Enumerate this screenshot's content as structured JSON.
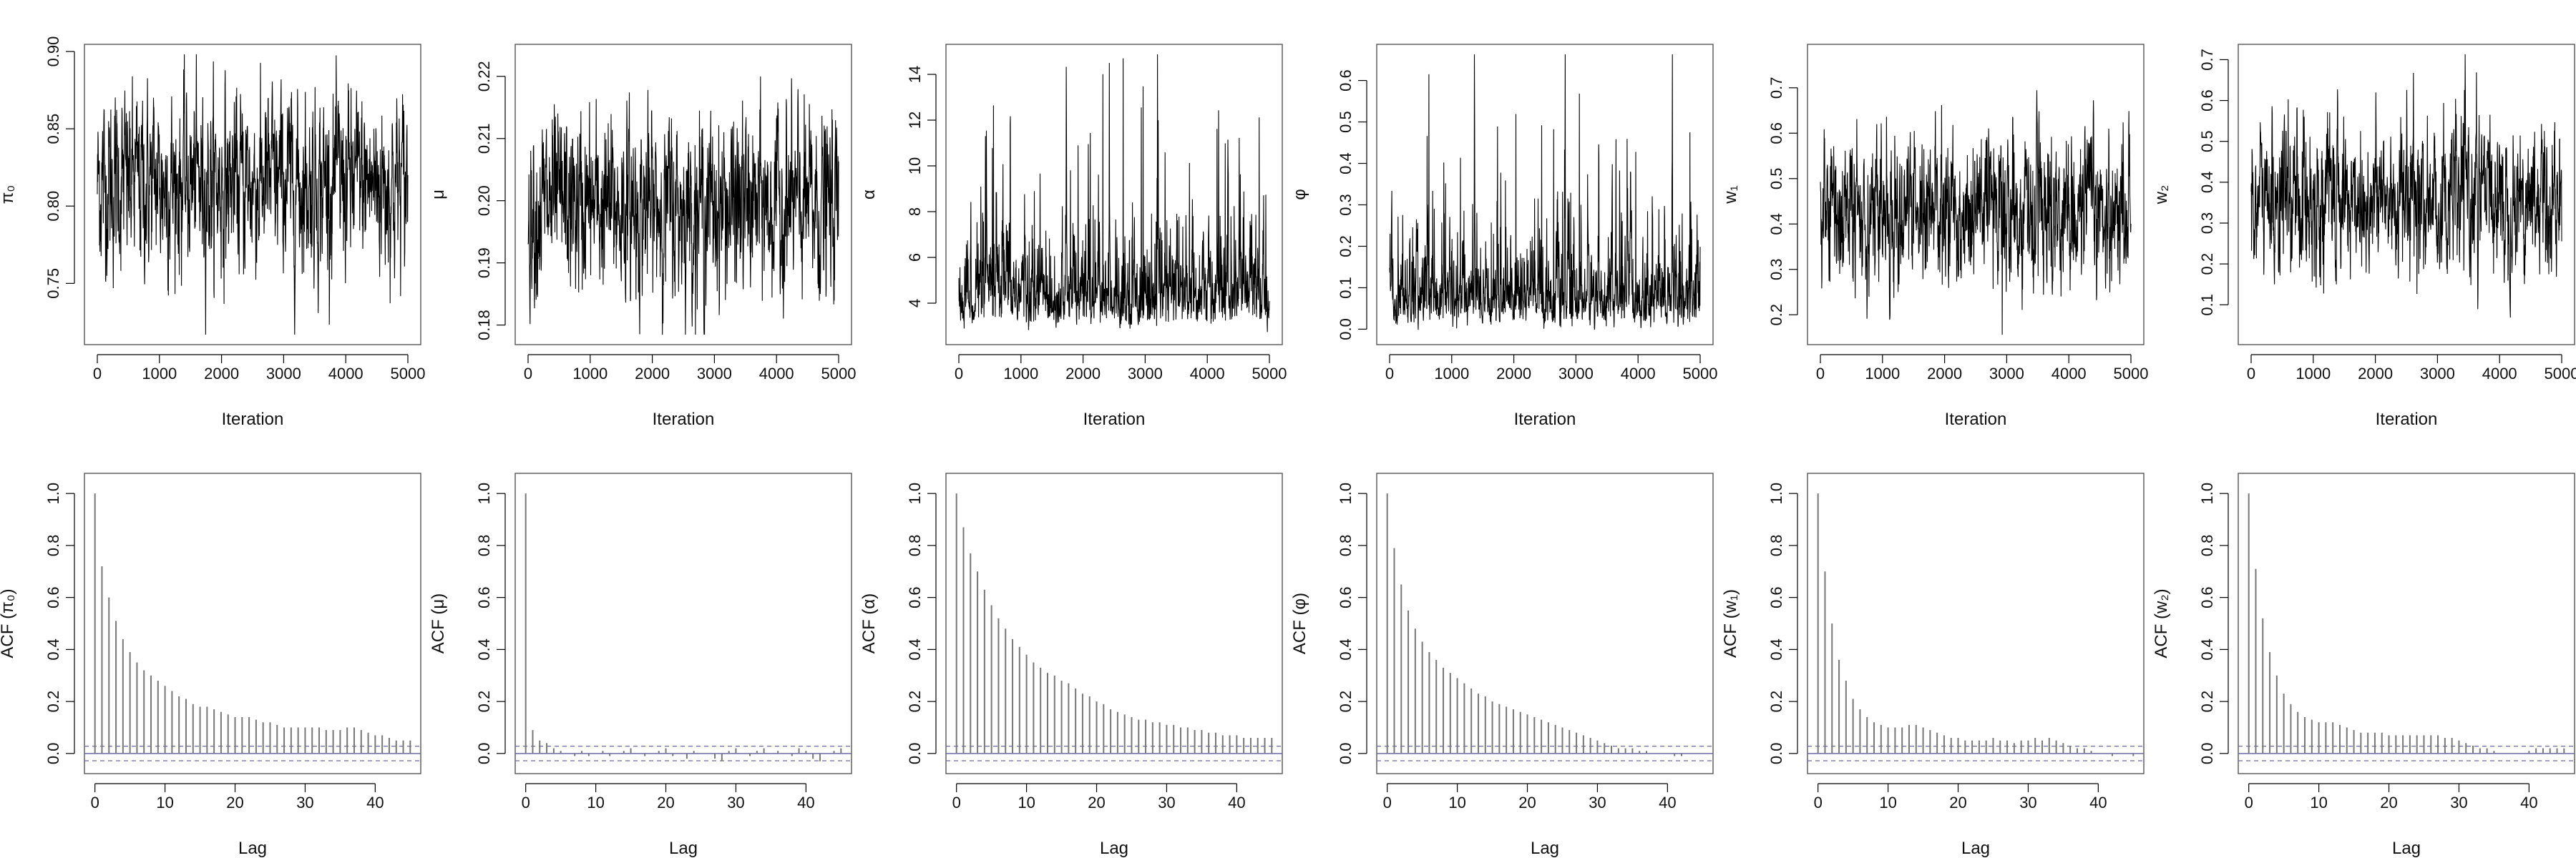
{
  "chart_data": {
    "trace_panels": [
      {
        "type": "line",
        "param": "pi0",
        "ylabel": "π₀",
        "xlabel": "Iteration",
        "xlim": [
          0,
          5000
        ],
        "ylim": [
          0.715,
          0.9
        ],
        "xticks": [
          "0",
          "1000",
          "2000",
          "3000",
          "4000",
          "5000"
        ],
        "yticks": [
          "0.75",
          "0.80",
          "0.85",
          "0.90"
        ],
        "mean": 0.815,
        "sd": 0.028
      },
      {
        "type": "line",
        "param": "mu",
        "ylabel": "μ",
        "xlabel": "Iteration",
        "xlim": [
          0,
          5000
        ],
        "ylim": [
          0.178,
          0.224
        ],
        "xticks": [
          "0",
          "1000",
          "2000",
          "3000",
          "4000",
          "5000"
        ],
        "yticks": [
          "0.18",
          "0.19",
          "0.20",
          "0.21",
          "0.22"
        ],
        "mean": 0.199,
        "sd": 0.007
      },
      {
        "type": "line",
        "param": "alpha",
        "ylabel": "α",
        "xlabel": "Iteration",
        "xlim": [
          0,
          5000
        ],
        "ylim": [
          2.5,
          15
        ],
        "xticks": [
          "0",
          "1000",
          "2000",
          "3000",
          "4000",
          "5000"
        ],
        "yticks": [
          "4",
          "6",
          "8",
          "10",
          "12",
          "14"
        ],
        "mean": 4.8,
        "sd": 1.4
      },
      {
        "type": "line",
        "param": "phi",
        "ylabel": "φ",
        "xlabel": "Iteration",
        "xlim": [
          0,
          5000
        ],
        "ylim": [
          -0.02,
          0.67
        ],
        "xticks": [
          "0",
          "1000",
          "2000",
          "3000",
          "4000",
          "5000"
        ],
        "yticks": [
          "0.0",
          "0.1",
          "0.2",
          "0.3",
          "0.4",
          "0.5",
          "0.6"
        ],
        "mean": 0.1,
        "sd": 0.07
      },
      {
        "type": "line",
        "param": "w1",
        "ylabel": "w₁",
        "xlabel": "Iteration",
        "xlim": [
          0,
          5000
        ],
        "ylim": [
          0.15,
          0.78
        ],
        "xticks": [
          "0",
          "1000",
          "2000",
          "3000",
          "4000",
          "5000"
        ],
        "yticks": [
          "0.2",
          "0.3",
          "0.4",
          "0.5",
          "0.6",
          "0.7"
        ],
        "mean": 0.43,
        "sd": 0.08
      },
      {
        "type": "line",
        "param": "w2",
        "ylabel": "w₂",
        "xlabel": "Iteration",
        "xlim": [
          0,
          5000
        ],
        "ylim": [
          0.02,
          0.72
        ],
        "xticks": [
          "0",
          "1000",
          "2000",
          "3000",
          "4000",
          "5000"
        ],
        "yticks": [
          "0.1",
          "0.2",
          "0.3",
          "0.4",
          "0.5",
          "0.6",
          "0.7"
        ],
        "mean": 0.36,
        "sd": 0.09
      }
    ],
    "acf_panels": [
      {
        "type": "bar",
        "ylabel": "ACF (π₀)",
        "xlabel": "Lag",
        "xlim": [
          -1.5,
          46.5
        ],
        "ylim": [
          -0.05,
          1.05
        ],
        "xticks": [
          "0",
          "10",
          "20",
          "30",
          "40"
        ],
        "yticks": [
          "0.0",
          "0.2",
          "0.4",
          "0.6",
          "0.8",
          "1.0"
        ],
        "ci": 0.028,
        "values": [
          1.0,
          0.72,
          0.6,
          0.51,
          0.44,
          0.39,
          0.35,
          0.32,
          0.3,
          0.28,
          0.26,
          0.24,
          0.22,
          0.21,
          0.19,
          0.18,
          0.18,
          0.17,
          0.16,
          0.15,
          0.14,
          0.14,
          0.14,
          0.13,
          0.12,
          0.12,
          0.11,
          0.1,
          0.1,
          0.1,
          0.1,
          0.1,
          0.1,
          0.09,
          0.09,
          0.09,
          0.1,
          0.1,
          0.09,
          0.08,
          0.07,
          0.07,
          0.06,
          0.05,
          0.05,
          0.05
        ]
      },
      {
        "type": "bar",
        "ylabel": "ACF (μ)",
        "xlabel": "Lag",
        "xlim": [
          -1.5,
          46.5
        ],
        "ylim": [
          -0.05,
          1.05
        ],
        "xticks": [
          "0",
          "10",
          "20",
          "30",
          "40"
        ],
        "yticks": [
          "0.0",
          "0.2",
          "0.4",
          "0.6",
          "0.8",
          "1.0"
        ],
        "ci": 0.028,
        "values": [
          1.0,
          0.09,
          0.05,
          0.04,
          0.02,
          0.01,
          0.0,
          -0.01,
          0.01,
          -0.01,
          0.0,
          0.01,
          -0.01,
          0.0,
          0.01,
          0.02,
          0.0,
          -0.01,
          0.0,
          0.01,
          0.02,
          -0.01,
          0.0,
          -0.02,
          0.01,
          0.0,
          0.0,
          -0.02,
          -0.03,
          0.01,
          0.02,
          0.0,
          -0.01,
          0.01,
          0.02,
          0.0,
          0.01,
          0.0,
          -0.01,
          0.02,
          0.01,
          -0.02,
          -0.03,
          0.0,
          0.01,
          0.02
        ]
      },
      {
        "type": "bar",
        "ylabel": "ACF (α)",
        "xlabel": "Lag",
        "xlim": [
          -1.5,
          46.5
        ],
        "ylim": [
          -0.05,
          1.05
        ],
        "xticks": [
          "0",
          "10",
          "20",
          "30",
          "40"
        ],
        "yticks": [
          "0.0",
          "0.2",
          "0.4",
          "0.6",
          "0.8",
          "1.0"
        ],
        "ci": 0.028,
        "values": [
          1.0,
          0.87,
          0.77,
          0.7,
          0.63,
          0.57,
          0.52,
          0.48,
          0.44,
          0.41,
          0.38,
          0.35,
          0.33,
          0.31,
          0.3,
          0.28,
          0.27,
          0.25,
          0.23,
          0.22,
          0.2,
          0.19,
          0.17,
          0.16,
          0.15,
          0.14,
          0.13,
          0.13,
          0.12,
          0.12,
          0.11,
          0.11,
          0.1,
          0.1,
          0.09,
          0.09,
          0.08,
          0.08,
          0.07,
          0.07,
          0.07,
          0.06,
          0.06,
          0.06,
          0.06,
          0.06
        ]
      },
      {
        "type": "bar",
        "ylabel": "ACF (φ)",
        "xlabel": "Lag",
        "xlim": [
          -1.5,
          46.5
        ],
        "ylim": [
          -0.05,
          1.05
        ],
        "xticks": [
          "0",
          "10",
          "20",
          "30",
          "40"
        ],
        "yticks": [
          "0.0",
          "0.2",
          "0.4",
          "0.6",
          "0.8",
          "1.0"
        ],
        "ci": 0.028,
        "values": [
          1.0,
          0.79,
          0.65,
          0.55,
          0.48,
          0.43,
          0.39,
          0.36,
          0.33,
          0.31,
          0.29,
          0.27,
          0.25,
          0.23,
          0.22,
          0.2,
          0.19,
          0.18,
          0.17,
          0.16,
          0.15,
          0.14,
          0.13,
          0.12,
          0.11,
          0.1,
          0.09,
          0.08,
          0.07,
          0.06,
          0.05,
          0.04,
          0.03,
          0.02,
          0.02,
          0.02,
          0.01,
          0.01,
          0.0,
          0.0,
          0.0,
          -0.01,
          -0.01,
          0.0,
          0.0,
          0.0
        ]
      },
      {
        "type": "bar",
        "ylabel": "ACF (w₁)",
        "xlabel": "Lag",
        "xlim": [
          -1.5,
          46.5
        ],
        "ylim": [
          -0.05,
          1.05
        ],
        "xticks": [
          "0",
          "10",
          "20",
          "30",
          "40"
        ],
        "yticks": [
          "0.0",
          "0.2",
          "0.4",
          "0.6",
          "0.8",
          "1.0"
        ],
        "ci": 0.028,
        "values": [
          1.0,
          0.7,
          0.5,
          0.36,
          0.28,
          0.21,
          0.17,
          0.14,
          0.12,
          0.11,
          0.1,
          0.1,
          0.1,
          0.11,
          0.11,
          0.1,
          0.09,
          0.08,
          0.07,
          0.06,
          0.06,
          0.05,
          0.05,
          0.05,
          0.05,
          0.06,
          0.05,
          0.05,
          0.04,
          0.05,
          0.05,
          0.06,
          0.05,
          0.06,
          0.05,
          0.04,
          0.03,
          0.02,
          0.02,
          0.01,
          0.0,
          0.0,
          -0.01,
          0.0,
          0.0,
          -0.01
        ]
      },
      {
        "type": "bar",
        "ylabel": "ACF (w₂)",
        "xlabel": "Lag",
        "xlim": [
          -1.5,
          46.5
        ],
        "ylim": [
          -0.05,
          1.05
        ],
        "xticks": [
          "0",
          "10",
          "20",
          "30",
          "40"
        ],
        "yticks": [
          "0.0",
          "0.2",
          "0.4",
          "0.6",
          "0.8",
          "1.0"
        ],
        "ci": 0.028,
        "values": [
          1.0,
          0.71,
          0.52,
          0.39,
          0.3,
          0.23,
          0.19,
          0.16,
          0.14,
          0.13,
          0.12,
          0.12,
          0.12,
          0.11,
          0.1,
          0.09,
          0.08,
          0.08,
          0.08,
          0.08,
          0.07,
          0.07,
          0.07,
          0.07,
          0.07,
          0.07,
          0.07,
          0.07,
          0.06,
          0.06,
          0.05,
          0.04,
          0.03,
          0.02,
          0.02,
          0.01,
          0.0,
          0.0,
          0.0,
          0.0,
          0.01,
          0.02,
          0.02,
          0.02,
          0.02,
          0.02
        ]
      }
    ]
  }
}
